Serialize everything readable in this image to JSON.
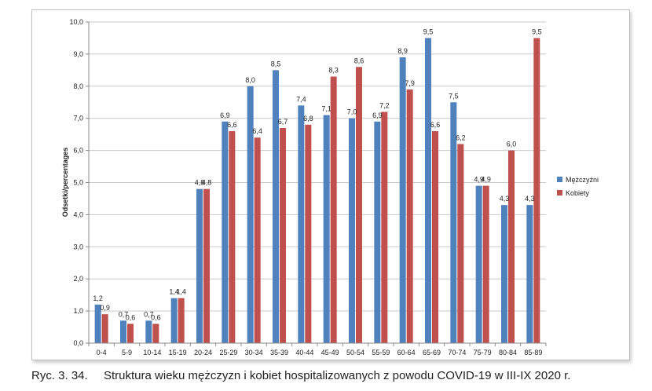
{
  "caption": {
    "number": "Ryc. 3. 34.",
    "text": "Struktura wieku mężczyzn i kobiet hospitalizowanych z powodu COVID-19 w III-IX 2020 r."
  },
  "chart_data": {
    "type": "bar",
    "title": "",
    "xlabel": "",
    "ylabel": "Odsetki/percentages",
    "ylim": [
      0,
      10
    ],
    "yticks": [
      "0,0",
      "1,0",
      "2,0",
      "3,0",
      "4,0",
      "5,0",
      "6,0",
      "7,0",
      "8,0",
      "9,0",
      "10,0"
    ],
    "grid": true,
    "legend_position": "right",
    "categories": [
      "0-4",
      "5-9",
      "10-14",
      "15-19",
      "20-24",
      "25-29",
      "30-34",
      "35-39",
      "40-44",
      "45-49",
      "50-54",
      "55-59",
      "60-64",
      "65-69",
      "70-74",
      "75-79",
      "80-84",
      "85-89"
    ],
    "series": [
      {
        "name": "Mężczyźni",
        "color": "#4f81bd",
        "values": [
          1.2,
          0.7,
          0.7,
          1.4,
          4.8,
          6.9,
          8.0,
          8.5,
          7.4,
          7.1,
          7.0,
          6.9,
          8.9,
          9.5,
          7.5,
          4.9,
          4.3,
          4.3
        ],
        "labels": [
          "1,2",
          "0,7",
          "0,7",
          "1,4",
          "4,8",
          "6,9",
          "8,0",
          "8,5",
          "7,4",
          "7,1",
          "7,0",
          "6,9",
          "8,9",
          "9,5",
          "7,5",
          "4,9",
          "4,3",
          "4,3"
        ]
      },
      {
        "name": "Kobiety",
        "color": "#c0504d",
        "values": [
          0.9,
          0.6,
          0.6,
          1.4,
          4.8,
          6.6,
          6.4,
          6.7,
          6.8,
          8.3,
          8.6,
          7.2,
          7.9,
          6.6,
          6.2,
          4.9,
          6.0,
          9.5
        ],
        "labels": [
          "0,9",
          "0,6",
          "0,6",
          "1,4",
          "4,8",
          "6,6",
          "6,4",
          "6,7",
          "6,8",
          "8,3",
          "8,6",
          "7,2",
          "7,9",
          "6,6",
          "6,2",
          "4,9",
          "6,0",
          "9,5"
        ]
      }
    ]
  }
}
